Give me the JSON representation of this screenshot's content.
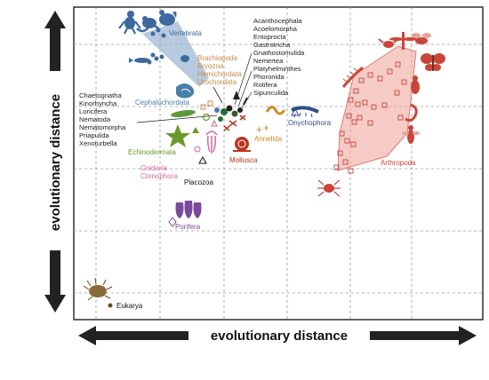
{
  "axes": {
    "x_title": "evolutionary distance",
    "y_title": "evolutionary distance"
  },
  "groups": {
    "vertebrata": "Vertebrata",
    "brachiopoda": "Brachiopoda",
    "bryozoa": "Bryozoa",
    "hemichordata": "Hemichordata",
    "urochordata": "Urochordata",
    "cephalochordata": "Cephalochordata",
    "acanthocephala": "Acanthocephala",
    "acoelomorpha": "Acoelomorpha",
    "entoprocta": "Entoprocta",
    "gastrotricha": "Gastrotricha",
    "gnathostomulida": "Gnathostomulida",
    "nemertea": "Nemertea",
    "platyhelminthes": "Platyhelminthes",
    "phoronida": "Phoronida",
    "rotifera": "Rotifera",
    "sipunculida": "Sipunculida",
    "chaetognatha": "Chaetognatha",
    "kinorhyncha": "Kinorhyncha",
    "loricifera": "Loricifera",
    "nematoda": "Nematoda",
    "nematomorpha": "Nematomorpha",
    "priapulida": "Priapulida",
    "xenoturbella": "Xenoturbella",
    "onychophora": "Onychophora",
    "annelida": "Annelida",
    "echinodermata": "Echinodermata",
    "mollusca": "Mollusca",
    "cnidaria": "Cnidaria",
    "ctenophora": "Ctenophora",
    "placozoa": "Placozoa",
    "porifera": "Porifera",
    "arthropoda": "Arthropoda",
    "eukarya": "Eukarya"
  },
  "colors": {
    "vertebrata": "#3d6a9e",
    "orange_group": "#c98a4a",
    "cephalochordata": "#4a7fa8",
    "black_group": "#222222",
    "onychophora": "#2f4f8a",
    "annelida": "#d08a2a",
    "echinodermata": "#6a9a2a",
    "mollusca": "#b8351f",
    "cnidaria": "#d46a9a",
    "placozoa": "#111111",
    "porifera": "#7a4a9a",
    "arthropoda": "#c9453a",
    "arthropoda_fill": "#f0a8a0",
    "eukarya": "#6a4a1a",
    "grid": "#9a9a9a"
  }
}
